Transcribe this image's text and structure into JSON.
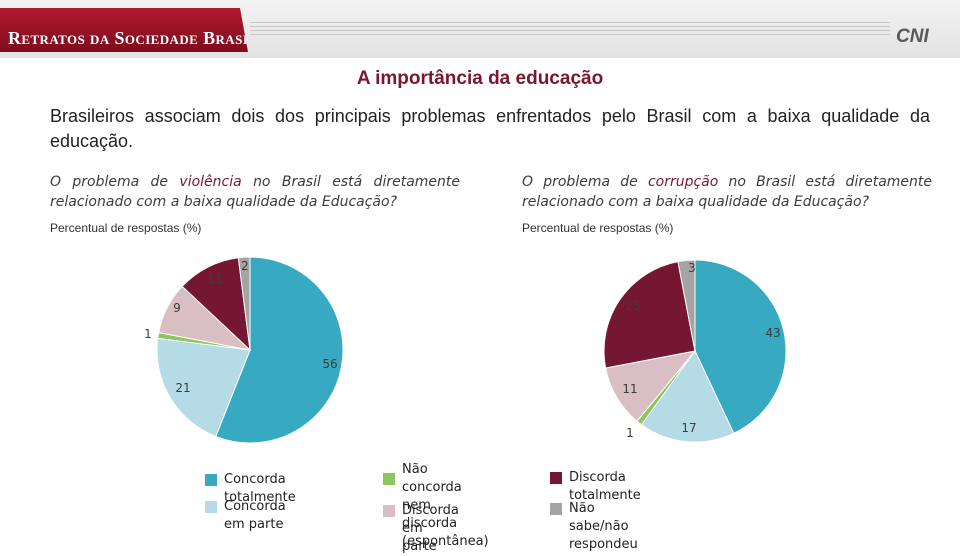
{
  "header": {
    "brand": "Retratos da Sociedade Brasileira",
    "logo": "CNI"
  },
  "title": "A importância da educação",
  "subtitle": "Brasileiros associam dois dos principais problemas enfrentados pelo Brasil com a baixa qualidade da educação.",
  "colors": {
    "concorda_totalmente": "#37a9c1",
    "concorda_em_parte": "#b4dbe6",
    "nao_concorda_nem_discorda": "#8dc55f",
    "discorda_em_parte": "#d9bfc4",
    "discorda_totalmente": "#751732",
    "nao_sabe": "#a4a4a4"
  },
  "chart_data": [
    {
      "type": "pie",
      "question_prefix": "O problema de",
      "question_highlight": "violência",
      "question_suffix": "no Brasil está diretamente relacionado com a baixa qualidade da Educação?",
      "unit_label": "Percentual de respostas (%)",
      "categories": [
        "Concorda totalmente",
        "Concorda em parte",
        "Não concorda nem discorda (espontânea)",
        "Discorda em parte",
        "Discorda totalmente",
        "Não sabe/não respondeu"
      ],
      "values": [
        56,
        21,
        1,
        9,
        11,
        2
      ],
      "data_labels": [
        "56",
        "21",
        "1",
        "9",
        "11",
        "2"
      ]
    },
    {
      "type": "pie",
      "question_prefix": "O problema de",
      "question_highlight": "corrupção",
      "question_suffix": "no Brasil está diretamente relacionado com a baixa qualidade da Educação?",
      "unit_label": "Percentual de respostas (%)",
      "categories": [
        "Concorda totalmente",
        "Concorda em parte",
        "Não concorda nem discorda (espontânea)",
        "Discorda em parte",
        "Discorda totalmente",
        "Não sabe/não respondeu"
      ],
      "values": [
        43,
        17,
        1,
        11,
        25,
        3
      ],
      "data_labels": [
        "43",
        "17",
        "1",
        "11",
        "25",
        "3"
      ]
    }
  ],
  "legend": {
    "items": [
      {
        "label": "Concorda totalmente",
        "color_key": "concorda_totalmente"
      },
      {
        "label": "Concorda em parte",
        "color_key": "concorda_em_parte"
      },
      {
        "label": "Não concorda nem\ndiscorda (espontânea)",
        "color_key": "nao_concorda_nem_discorda"
      },
      {
        "label": "Discorda em parte",
        "color_key": "discorda_em_parte"
      },
      {
        "label": "Discorda totalmente",
        "color_key": "discorda_totalmente"
      },
      {
        "label": "Não sabe/não respondeu",
        "color_key": "nao_sabe"
      }
    ]
  }
}
